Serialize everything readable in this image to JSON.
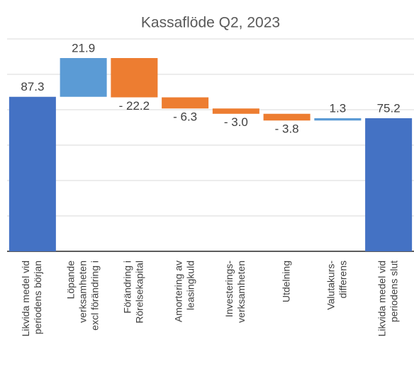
{
  "chart_data": {
    "type": "waterfall",
    "title": "Kassaflöde Q2, 2023",
    "categories": [
      [
        "Likvida medel vid",
        "periodens början"
      ],
      [
        "Löpande",
        "verksamheten",
        "excl förändring i"
      ],
      [
        "Förändring i",
        "Rörelsekapital"
      ],
      [
        "Amortering av",
        "leasingkuld"
      ],
      [
        "Investerings-",
        "verksamheten"
      ],
      [
        "Utdelning"
      ],
      [
        "Valutakurs-",
        "differens"
      ],
      [
        "Likvida medel vid",
        "periodens slut"
      ]
    ],
    "values": [
      87.3,
      21.9,
      -22.2,
      -6.3,
      -3.0,
      -3.8,
      1.3,
      75.2
    ],
    "value_labels": [
      "87.3",
      "21.9",
      "- 22.2",
      "- 6.3",
      "- 3.0",
      "- 3.8",
      "1.3",
      "75.2"
    ],
    "is_total": [
      true,
      false,
      false,
      false,
      false,
      false,
      false,
      true
    ],
    "colors": {
      "total": "#4472c4",
      "increase": "#5b9bd5",
      "decrease": "#ed7d31"
    },
    "ylim": [
      0,
      120
    ],
    "yticks": [
      0,
      20,
      40,
      60,
      80,
      100,
      120
    ],
    "grid": true
  }
}
